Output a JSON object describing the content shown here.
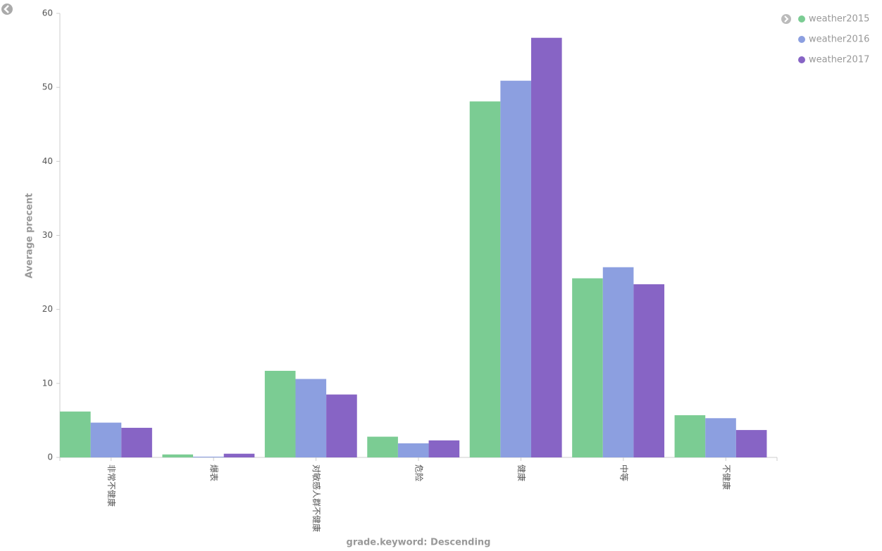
{
  "chart_data": {
    "type": "bar",
    "x_label": "grade.keyword: Descending",
    "y_label": "Average precent",
    "categories": [
      "非常不健康",
      "爆表",
      "对敏感人群不健康",
      "危险",
      "健康",
      "中等",
      "不健康"
    ],
    "series": [
      {
        "name": "weather2015",
        "color": "#7bcc93",
        "values": [
          6.2,
          0.4,
          11.7,
          2.8,
          48.1,
          24.2,
          5.7
        ]
      },
      {
        "name": "weather2016",
        "color": "#8c9fe0",
        "values": [
          4.7,
          0.1,
          10.6,
          1.9,
          50.9,
          25.7,
          5.3
        ]
      },
      {
        "name": "weather2017",
        "color": "#8764c5",
        "values": [
          4.0,
          0.5,
          8.5,
          2.3,
          56.7,
          23.4,
          3.7
        ]
      }
    ],
    "ylim": [
      0,
      60
    ],
    "yticks": [
      0,
      10,
      20,
      30,
      40,
      50,
      60
    ],
    "legend": "top-right"
  }
}
